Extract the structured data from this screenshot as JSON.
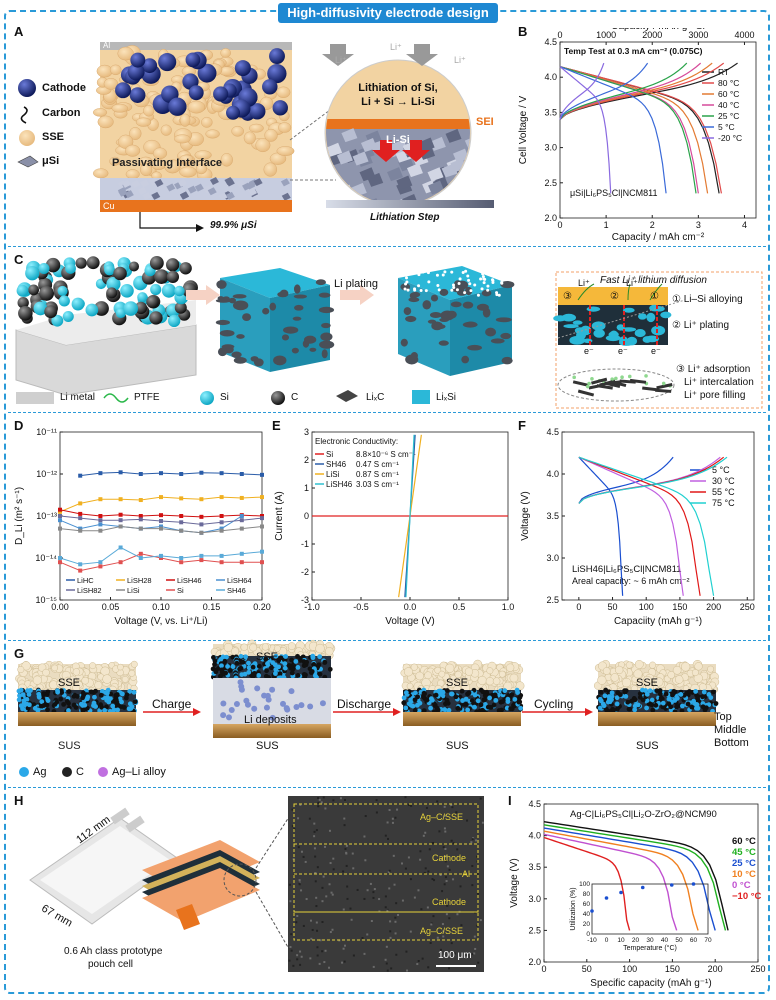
{
  "header": {
    "title": "High-diffusivity electrode design"
  },
  "panel_labels": {
    "A": "A",
    "B": "B",
    "C": "C",
    "D": "D",
    "E": "E",
    "F": "F",
    "G": "G",
    "H": "H",
    "I": "I"
  },
  "panelA": {
    "legend": [
      "Cathode",
      "Carbon",
      "SSE",
      "μSi"
    ],
    "al": "Al",
    "cu": "Cu",
    "passivating": "Passivating Interface",
    "si_pct": "99.9% μSi",
    "li1": "Li⁺",
    "li2": "Li⁺",
    "li3": "Li⁺",
    "lith_line1": "Lithiation of Si,",
    "lith_line2": "Li + Si → Li-Si",
    "sei": "SEI",
    "lisi": "Li-Si",
    "step": "Lithiation Step"
  },
  "panelC": {
    "li_plating": "Li plating",
    "fast_title": "Fast Li⁺ lithium diffusion",
    "mech": [
      "① Li–Si alloying",
      "② Li⁺ plating",
      "③ Li⁺ adsorption",
      "Li⁺ intercalation",
      "Li⁺ pore filling"
    ],
    "circ1": "③",
    "circ2": "②",
    "circ3": "①",
    "li_a": "Li⁺",
    "li_b": "Li⁺",
    "e_a": "e⁻",
    "e_b": "e⁻",
    "e_c": "e⁻",
    "legend": [
      "Li metal",
      "PTFE",
      "Si",
      "C",
      "LiₓC",
      "LiₓSi"
    ]
  },
  "panelG": {
    "sse1": "SSE",
    "sus1": "SUS",
    "charge": "Charge",
    "sse2": "SSE",
    "li_dep": "Li deposits",
    "sus2": "SUS",
    "discharge": "Discharge",
    "sse3": "SSE",
    "sus3": "SUS",
    "cycling": "Cycling",
    "sse4": "SSE",
    "sus4": "SUS",
    "layers": [
      "Top",
      "Middle",
      "Bottom"
    ],
    "legend": [
      "Ag",
      "C",
      "Ag–Li alloy"
    ]
  },
  "panelH": {
    "dim1": "112 mm",
    "dim2": "67 mm",
    "cell_l1": "0.6 Ah class prototype",
    "cell_l2": "pouch cell",
    "layers": [
      "Ag–C/SSE",
      "Cathode",
      "Al",
      "Cathode",
      "Ag–C/SSE"
    ],
    "scale": "100 μm"
  },
  "chart_data": [
    {
      "id": "B",
      "type": "line",
      "title": "Temp Test at 0.3 mA cm⁻² (0.075C)",
      "annotation": "μSi|Li₆PS₅Cl|NCM811",
      "xlabel": "Capacity / mAh cm⁻²",
      "x2label": "Capacity / mAh g⁻¹Si",
      "ylabel": "Cell Voltage / V",
      "xlim": [
        0,
        4.25
      ],
      "ylim": [
        2.0,
        4.5
      ],
      "xticks": [
        0,
        1,
        2,
        3,
        4
      ],
      "x2ticks": [
        0,
        1000,
        2000,
        3000,
        4000
      ],
      "yticks": [
        2.0,
        2.5,
        3.0,
        3.5,
        4.0,
        4.5
      ],
      "series": [
        {
          "name": "RT",
          "color": "#222222",
          "charge_cap": 3.85,
          "discharge_cap": 3.45
        },
        {
          "name": "80 °C",
          "color": "#e04a4a",
          "charge_cap": 3.55,
          "discharge_cap": 3.5
        },
        {
          "name": "60 °C",
          "color": "#e37b33",
          "charge_cap": 3.3,
          "discharge_cap": 3.2
        },
        {
          "name": "40 °C",
          "color": "#d64a9a",
          "charge_cap": 3.05,
          "discharge_cap": 3.0
        },
        {
          "name": "25 °C",
          "color": "#2aa34a",
          "charge_cap": 2.75,
          "discharge_cap": 2.95
        },
        {
          "name": "5 °C",
          "color": "#3a6ad8",
          "charge_cap": 1.9,
          "discharge_cap": 2.3
        },
        {
          "name": "-20 °C",
          "color": "#8a6ae0",
          "charge_cap": 0.95,
          "discharge_cap": 1.1
        }
      ]
    },
    {
      "id": "D",
      "type": "line",
      "xlabel": "Voltage (V, vs. Li⁺/Li)",
      "ylabel": "D_Li (m² s⁻¹)",
      "xlim": [
        0,
        0.2
      ],
      "ylim_log10": [
        -15,
        -11
      ],
      "xticks": [
        0.0,
        0.05,
        0.1,
        0.15,
        0.2
      ],
      "yticks": [
        "10⁻¹¹",
        "10⁻¹²",
        "10⁻¹³",
        "10⁻¹⁴",
        "10⁻¹⁵"
      ],
      "x": [
        0.0,
        0.02,
        0.04,
        0.06,
        0.08,
        0.1,
        0.12,
        0.14,
        0.16,
        0.18,
        0.2
      ],
      "series": [
        {
          "name": "LiHC",
          "color": "#2a5ca8",
          "log10": [
            null,
            -12.04,
            -11.98,
            -11.96,
            -12.0,
            -11.98,
            -12.0,
            -11.97,
            -11.98,
            -12.0,
            -12.02
          ]
        },
        {
          "name": "LiSH28",
          "color": "#f0b020",
          "log10": [
            -12.9,
            -12.7,
            -12.6,
            -12.6,
            -12.62,
            -12.55,
            -12.58,
            -12.6,
            -12.55,
            -12.57,
            -12.55
          ]
        },
        {
          "name": "LiSH46",
          "color": "#d01010",
          "log10": [
            -12.85,
            -12.95,
            -13.0,
            -12.97,
            -13.0,
            -12.98,
            -13.0,
            -13.02,
            -13.0,
            -12.98,
            -13.0
          ]
        },
        {
          "name": "LiSH64",
          "color": "#4a90d0",
          "log10": [
            -13.1,
            -13.3,
            -13.2,
            -13.25,
            -13.3,
            -13.25,
            -13.35,
            -13.4,
            -13.3,
            -13.0,
            null
          ]
        },
        {
          "name": "LiSH82",
          "color": "#6a6a9a",
          "log10": [
            -13.0,
            -13.05,
            -13.1,
            -13.1,
            -13.08,
            -13.12,
            -13.15,
            -13.2,
            -13.15,
            -13.1,
            -13.05
          ]
        },
        {
          "name": "LiSi",
          "color": "#888888",
          "log10": [
            -13.3,
            -13.35,
            -13.35,
            -13.25,
            -13.3,
            -13.3,
            -13.35,
            -13.4,
            -13.35,
            -13.3,
            -13.25
          ]
        },
        {
          "name": "Si",
          "color": "#e05050",
          "log10": [
            -14.1,
            -14.3,
            -14.2,
            -14.1,
            -13.9,
            -14.0,
            -14.1,
            -14.05,
            -14.1,
            -14.1,
            -14.1
          ]
        },
        {
          "name": "SH46",
          "color": "#5aaad8",
          "log10": [
            -14.0,
            -14.15,
            -14.1,
            -13.75,
            -14.0,
            -13.95,
            -14.0,
            -13.95,
            -13.95,
            -13.9,
            -13.85
          ]
        }
      ]
    },
    {
      "id": "E",
      "type": "line",
      "legend_title": "Electronic Conductivity:",
      "xlabel": "Voltage (V)",
      "ylabel": "Current (A)",
      "xlim": [
        -1.0,
        1.0
      ],
      "ylim": [
        -3,
        3
      ],
      "xticks": [
        -1.0,
        -0.5,
        0.0,
        0.5,
        1.0
      ],
      "yticks": [
        -3,
        -2,
        -1,
        0,
        1,
        2,
        3
      ],
      "series": [
        {
          "name": "Si",
          "value": "8.8×10⁻⁶ S cm⁻¹",
          "color": "#e02020",
          "slope": 0.0
        },
        {
          "name": "SH46",
          "value": "0.47 S cm⁻¹",
          "color": "#2a5ca8",
          "slope": 55
        },
        {
          "name": "LiSi",
          "value": "0.87 S cm⁻¹",
          "color": "#f0b020",
          "slope": 25
        },
        {
          "name": "LiSH46",
          "value": "3.03 S cm⁻¹",
          "color": "#30c0d0",
          "slope": 70
        }
      ]
    },
    {
      "id": "F",
      "type": "line",
      "annotation1": "LiSH46|Li₆PS₅Cl|NCM811",
      "annotation2": "Areal capacity: ~ 6 mAh cm⁻²",
      "xlabel": "Capaciity (mAh g⁻¹)",
      "ylabel": "Voltage (V)",
      "xlim": [
        -25,
        260
      ],
      "ylim": [
        2.5,
        4.5
      ],
      "xticks": [
        0,
        50,
        100,
        150,
        200,
        250
      ],
      "yticks": [
        2.5,
        3.0,
        3.5,
        4.0,
        4.5
      ],
      "series": [
        {
          "name": "5 °C",
          "color": "#1a4fd0",
          "charge_cap": 140,
          "discharge_cap": 65
        },
        {
          "name": "30 °C",
          "color": "#c060e0",
          "charge_cap": 210,
          "discharge_cap": 155
        },
        {
          "name": "55 °C",
          "color": "#e01818",
          "charge_cap": 215,
          "discharge_cap": 180
        },
        {
          "name": "75 °C",
          "color": "#20d0d0",
          "charge_cap": 220,
          "discharge_cap": 200
        }
      ]
    },
    {
      "id": "I",
      "type": "line",
      "title": "Ag-C|Li₆PS₅Cl|Li₂O-ZrO₂@NCM90",
      "xlabel": "Specific capacity (mAh g⁻¹)",
      "ylabel": "Voltage (V)",
      "xlim": [
        0,
        250
      ],
      "ylim": [
        2.0,
        4.5
      ],
      "xticks": [
        0,
        50,
        100,
        150,
        200,
        250
      ],
      "yticks": [
        2.0,
        2.5,
        3.0,
        3.5,
        4.0,
        4.5
      ],
      "series": [
        {
          "name": "60 °C",
          "color": "#111111",
          "cap": 215
        },
        {
          "name": "45 °C",
          "color": "#20b020",
          "cap": 212
        },
        {
          "name": "25 °C",
          "color": "#1a4fd0",
          "cap": 200
        },
        {
          "name": "10 °C",
          "color": "#f08020",
          "cap": 180
        },
        {
          "name": "0 °C",
          "color": "#c050d0",
          "cap": 155
        },
        {
          "name": "−10 °C",
          "color": "#e02020",
          "cap": 100
        }
      ],
      "inset": {
        "xlabel": "Temperature (°C)",
        "ylabel": "Utilization (%)",
        "xlim": [
          -10,
          70
        ],
        "ylim": [
          0,
          100
        ],
        "xticks": [
          -10,
          0,
          10,
          20,
          30,
          40,
          50,
          60,
          70
        ],
        "yticks": [
          0,
          20,
          40,
          60,
          80,
          100
        ],
        "x": [
          -10,
          0,
          10,
          25,
          45,
          60
        ],
        "y": [
          46,
          72,
          83,
          93,
          98,
          100
        ]
      }
    }
  ]
}
